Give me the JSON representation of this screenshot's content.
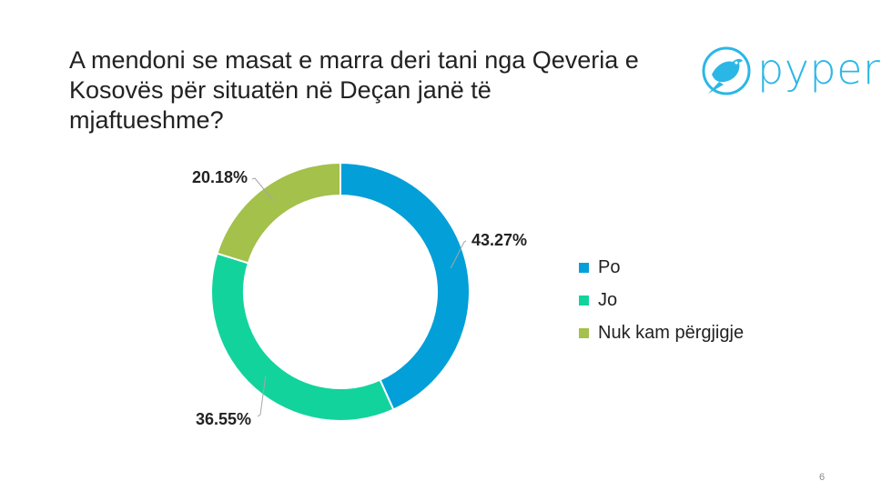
{
  "title": {
    "line1": "A mendoni se masat e marra deri tani nga Qeveria e",
    "line2": "Kosovës për situatën në Deçan janë të mjaftueshme?"
  },
  "logo": {
    "text": "pyper",
    "color": "#2bb7e6"
  },
  "chart_data": {
    "type": "pie",
    "variant": "donut",
    "title": "A mendoni se masat e marra deri tani nga Qeveria e Kosovës për situatën në Deçan janë të mjaftueshme?",
    "categories": [
      "Po",
      "Jo",
      "Nuk kam përgjigje"
    ],
    "values": [
      43.27,
      36.55,
      20.18
    ],
    "labels": [
      "43.27%",
      "36.55%",
      "20.18%"
    ],
    "colors": [
      "#039fd8",
      "#13d39d",
      "#a3c14b"
    ],
    "legend_position": "right"
  },
  "page_number": "6"
}
